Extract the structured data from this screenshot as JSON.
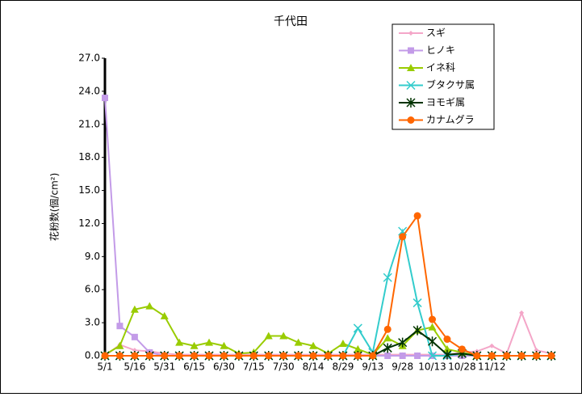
{
  "chart_data": {
    "type": "line",
    "title": "千代田",
    "y_label": "花粉数(個/cm²)",
    "categories": [
      "5/1",
      null,
      "5/16",
      null,
      "5/31",
      null,
      "6/15",
      null,
      "6/30",
      null,
      "7/15",
      null,
      "7/30",
      null,
      "8/14",
      null,
      "8/29",
      null,
      "9/13",
      null,
      "9/28",
      null,
      "10/13",
      null,
      "10/28",
      null,
      "11/12",
      null,
      null,
      null,
      null
    ],
    "ylim": [
      0,
      27
    ],
    "yticks": [
      {
        "value": 0,
        "label": "0.0"
      },
      {
        "value": 3,
        "label": "3.0"
      },
      {
        "value": 6,
        "label": "6.0"
      },
      {
        "value": 9,
        "label": "9.0"
      },
      {
        "value": 12,
        "label": "12.0"
      },
      {
        "value": 15,
        "label": "15.0"
      },
      {
        "value": 18,
        "label": "18.0"
      },
      {
        "value": 21,
        "label": "21.0"
      },
      {
        "value": 24,
        "label": "24.0"
      },
      {
        "value": 27,
        "label": "27.0"
      }
    ],
    "legend_position": "upper right",
    "series": [
      {
        "name": "スギ",
        "color": "#f4a6c8",
        "marker": "diamond",
        "values": [
          0,
          1.0,
          0.5,
          0.4,
          0.2,
          0.1,
          0.1,
          0.1,
          0.1,
          0.1,
          0.1,
          0.1,
          0.1,
          0.1,
          0.1,
          0.1,
          0.1,
          0.1,
          0.1,
          0.1,
          0.1,
          0.1,
          0.1,
          0.1,
          0.3,
          0.4,
          0.9,
          0.2,
          3.9,
          0.5,
          0.2
        ]
      },
      {
        "name": "ヒノキ",
        "color": "#c39be8",
        "marker": "square",
        "values": [
          23.4,
          2.7,
          1.7,
          0.3,
          0,
          0,
          0,
          0,
          0,
          0,
          0,
          0,
          0,
          0,
          0,
          0,
          0,
          0,
          0,
          0,
          0,
          0,
          0,
          0,
          0,
          0,
          0,
          0,
          0,
          0,
          0
        ]
      },
      {
        "name": "イネ科",
        "color": "#99cc00",
        "marker": "triangle",
        "values": [
          0.1,
          0.9,
          4.2,
          4.5,
          3.6,
          1.2,
          0.9,
          1.2,
          0.9,
          0.2,
          0.3,
          1.8,
          1.8,
          1.2,
          0.9,
          0.2,
          1.1,
          0.6,
          0.1,
          1.6,
          0.9,
          2.3,
          2.6,
          0.6,
          0.3,
          0,
          0,
          0,
          0,
          0,
          0
        ]
      },
      {
        "name": "ブタクサ属",
        "color": "#33cccc",
        "marker": "x",
        "values": [
          0,
          0,
          0,
          0,
          0,
          0,
          0,
          0,
          0,
          0,
          0,
          0,
          0,
          0,
          0,
          0,
          0,
          2.5,
          0.3,
          7.1,
          11.3,
          4.8,
          0,
          0,
          0.2,
          0,
          0,
          0,
          0,
          0,
          0
        ]
      },
      {
        "name": "ヨモギ属",
        "color": "#003300",
        "marker": "star",
        "values": [
          0,
          0,
          0,
          0,
          0,
          0,
          0,
          0,
          0,
          0,
          0,
          0,
          0,
          0,
          0,
          0,
          0,
          0,
          0,
          0.7,
          1.2,
          2.3,
          1.3,
          0.1,
          0.2,
          0,
          0,
          0,
          0,
          0,
          0
        ]
      },
      {
        "name": "カナムグラ",
        "color": "#ff6600",
        "marker": "circle",
        "values": [
          0,
          0,
          0,
          0,
          0,
          0,
          0,
          0,
          0,
          0,
          0,
          0,
          0,
          0,
          0,
          0,
          0,
          0,
          0,
          2.4,
          10.8,
          12.7,
          3.3,
          1.5,
          0.6,
          0,
          0,
          0,
          0,
          0,
          0
        ]
      }
    ]
  }
}
